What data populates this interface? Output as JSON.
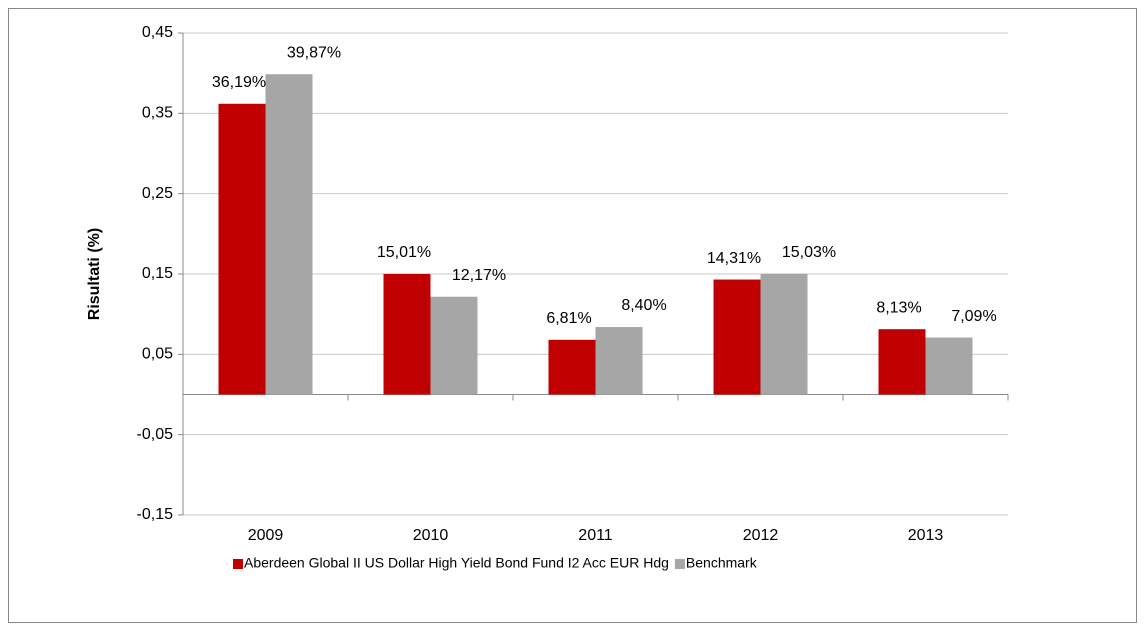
{
  "chart_data": {
    "type": "bar",
    "y_label": "Risultati (%)",
    "categories": [
      "2009",
      "2010",
      "2011",
      "2012",
      "2013"
    ],
    "series": [
      {
        "name": "Aberdeen Global II US Dollar High Yield Bond Fund I2 Acc EUR Hdg",
        "color": "#c00000",
        "values": [
          0.3619,
          0.1501,
          0.0681,
          0.1431,
          0.0813
        ],
        "value_labels": [
          "36,19%",
          "15,01%",
          "6,81%",
          "14,31%",
          "8,13%"
        ]
      },
      {
        "name": "Benchmark",
        "color": "#a6a6a6",
        "values": [
          0.3987,
          0.1217,
          0.084,
          0.1503,
          0.0709
        ],
        "value_labels": [
          "39,87%",
          "12,17%",
          "8,40%",
          "15,03%",
          "7,09%"
        ]
      }
    ],
    "ylim": [
      -0.15,
      0.45
    ],
    "yticks": [
      {
        "value": -0.15,
        "label": "-0,15"
      },
      {
        "value": -0.05,
        "label": "-0,05"
      },
      {
        "value": 0.05,
        "label": "0,05"
      },
      {
        "value": 0.15,
        "label": "0,15"
      },
      {
        "value": 0.25,
        "label": "0,25"
      },
      {
        "value": 0.35,
        "label": "0,35"
      },
      {
        "value": 0.45,
        "label": "0,45"
      }
    ],
    "grid": true
  }
}
